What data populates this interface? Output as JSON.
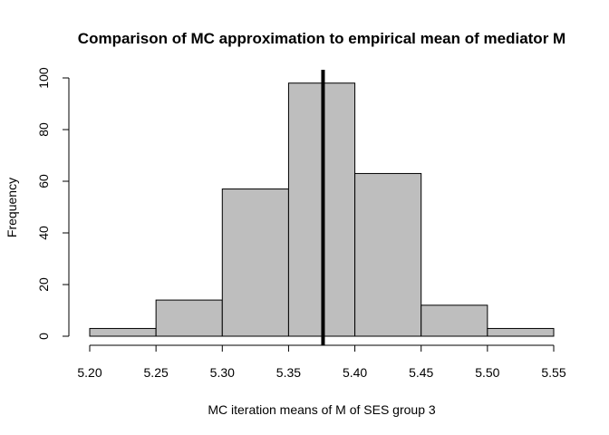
{
  "chart_data": {
    "type": "bar",
    "subtype": "histogram",
    "title": "Comparison of MC approximation to empirical mean of mediator M",
    "xlabel": "MC iteration means of M of SES group 3",
    "ylabel": "Frequency",
    "bin_edges": [
      5.2,
      5.25,
      5.3,
      5.35,
      5.4,
      5.45,
      5.5,
      5.55
    ],
    "values": [
      3,
      14,
      57,
      98,
      63,
      12,
      3
    ],
    "xlim": [
      5.2,
      5.55
    ],
    "ylim": [
      0,
      100
    ],
    "x_ticks": [
      "5.20",
      "5.25",
      "5.30",
      "5.35",
      "5.40",
      "5.45",
      "5.50",
      "5.55"
    ],
    "y_ticks": [
      "0",
      "20",
      "40",
      "60",
      "80",
      "100"
    ],
    "reference_line": {
      "x": 5.376,
      "color": "#000000"
    },
    "bar_color": "#bebebe",
    "grid": false,
    "legend": "none"
  }
}
